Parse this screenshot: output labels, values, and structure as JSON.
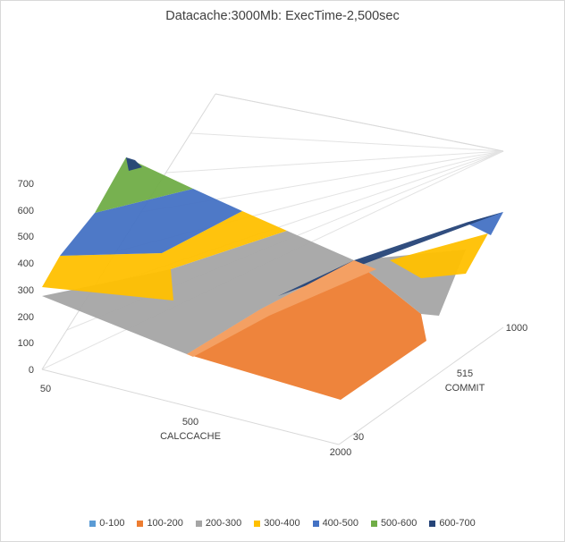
{
  "chart_data": {
    "type": "surface-3d",
    "title": "Datacache:3000Mb: ExecTime-2,500sec",
    "x_axis": {
      "label": "CALCCACHE",
      "ticks": [
        "50",
        "500",
        "2000"
      ]
    },
    "y_axis": {
      "label": "COMMIT",
      "ticks": [
        "30",
        "515",
        "1000"
      ]
    },
    "z_axis": {
      "ticks": [
        "0",
        "100",
        "200",
        "300",
        "400",
        "500",
        "600",
        "700"
      ],
      "zlim": [
        0,
        700
      ]
    },
    "grid": "z-major",
    "legend_position": "bottom",
    "bands": [
      {
        "label": "0-100",
        "color": "#5b9bd5"
      },
      {
        "label": "100-200",
        "color": "#ed7d31"
      },
      {
        "label": "200-300",
        "color": "#a5a5a5"
      },
      {
        "label": "300-400",
        "color": "#ffc000"
      },
      {
        "label": "400-500",
        "color": "#4472c4"
      },
      {
        "label": "500-600",
        "color": "#70ad47"
      },
      {
        "label": "600-700",
        "color": "#264478"
      }
    ]
  }
}
